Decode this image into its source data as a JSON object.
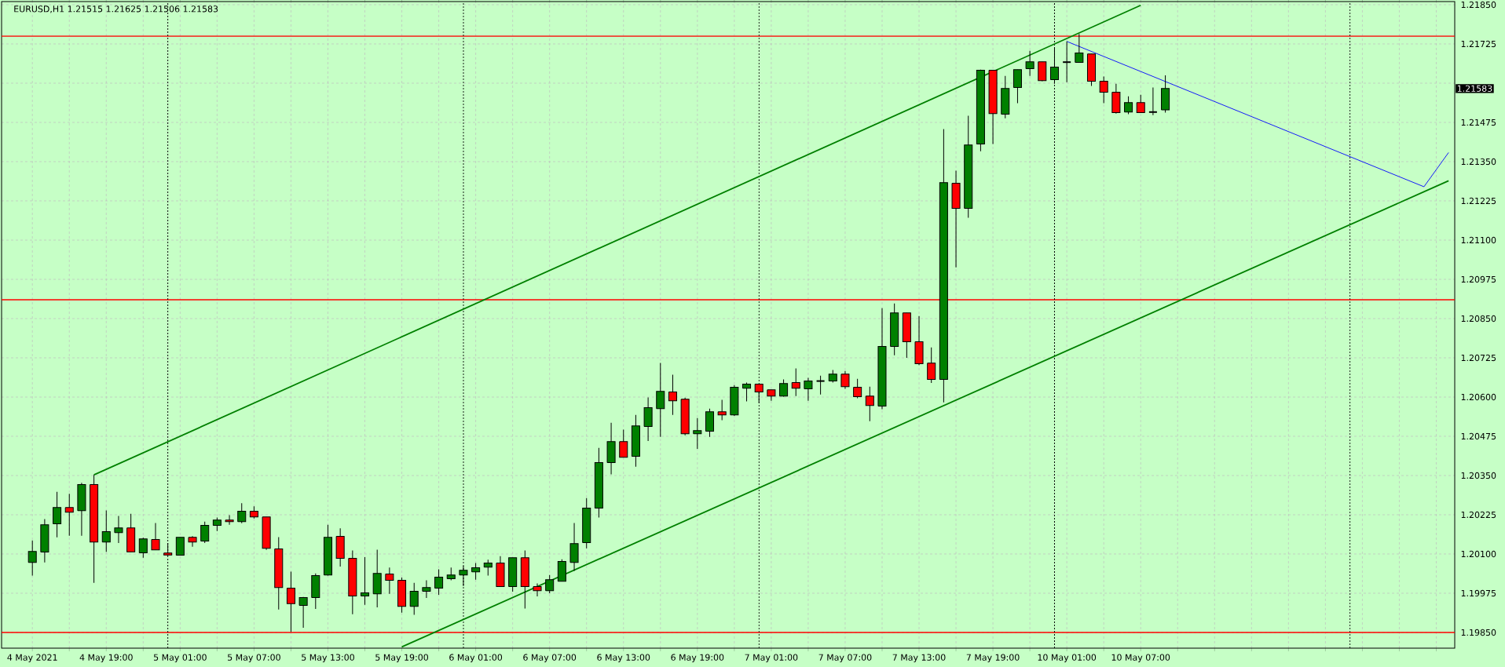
{
  "chart_data": {
    "type": "candlestick",
    "title": "EURUSD,H1  1.21515 1.21625 1.21506 1.21583",
    "categories": [
      "4 May 2021",
      null,
      null,
      null,
      null,
      null,
      "4 May 19:00",
      null,
      null,
      null,
      null,
      null,
      "5 May 01:00",
      null,
      null,
      null,
      null,
      null,
      "5 May 07:00",
      null,
      null,
      null,
      null,
      null,
      "5 May 13:00",
      null,
      null,
      null,
      null,
      null,
      "5 May 19:00",
      null,
      null,
      null,
      null,
      null,
      "6 May 01:00",
      null,
      null,
      null,
      null,
      null,
      "6 May 07:00",
      null,
      null,
      null,
      null,
      null,
      "6 May 13:00",
      null,
      null,
      null,
      null,
      null,
      "6 May 19:00",
      null,
      null,
      null,
      null,
      null,
      "7 May 01:00",
      null,
      null,
      null,
      null,
      null,
      "7 May 07:00",
      null,
      null,
      null,
      null,
      null,
      "7 May 13:00",
      null,
      null,
      null,
      null,
      null,
      "7 May 19:00",
      null,
      null,
      null,
      null,
      null,
      "10 May 01:00",
      null,
      null,
      null,
      null,
      null,
      "10 May 07:00",
      null,
      null,
      null,
      null,
      null,
      null,
      null,
      null,
      null,
      null,
      null,
      null,
      null,
      null,
      null,
      null,
      null,
      null,
      null,
      null,
      null,
      null,
      null,
      null,
      null
    ],
    "ohlc": [
      [
        1.20073,
        1.20143,
        1.20031,
        1.20108
      ],
      [
        1.20106,
        1.20211,
        1.20073,
        1.20193
      ],
      [
        1.20196,
        1.20298,
        1.20153,
        1.20248
      ],
      [
        1.20248,
        1.20292,
        1.20158,
        1.20233
      ],
      [
        1.20238,
        1.20327,
        1.20158,
        1.20321
      ],
      [
        1.20321,
        1.20352,
        1.20008,
        1.20138
      ],
      [
        1.20138,
        1.20239,
        1.20107,
        1.20171
      ],
      [
        1.20168,
        1.20221,
        1.20135,
        1.20183
      ],
      [
        1.20183,
        1.20228,
        1.20107,
        1.20107
      ],
      [
        1.20104,
        1.20152,
        1.20088,
        1.20148
      ],
      [
        1.20146,
        1.20199,
        1.20113,
        1.20113
      ],
      [
        1.20103,
        1.20135,
        1.20095,
        1.20097
      ],
      [
        1.20096,
        1.20153,
        1.20096,
        1.20153
      ],
      [
        1.20153,
        1.20157,
        1.20123,
        1.20138
      ],
      [
        1.20141,
        1.20203,
        1.20135,
        1.20191
      ],
      [
        1.20191,
        1.20216,
        1.20173,
        1.20208
      ],
      [
        1.20208,
        1.20224,
        1.20193,
        1.20203
      ],
      [
        1.20203,
        1.20262,
        1.20198,
        1.20236
      ],
      [
        1.20236,
        1.20252,
        1.20213,
        1.20218
      ],
      [
        1.20218,
        1.20218,
        1.20113,
        1.20118
      ],
      [
        1.20116,
        1.20154,
        1.19923,
        1.19993
      ],
      [
        1.19991,
        1.20044,
        1.19852,
        1.19942
      ],
      [
        1.19936,
        1.19963,
        1.19865,
        1.19961
      ],
      [
        1.19961,
        1.20038,
        1.19925,
        1.20031
      ],
      [
        1.20033,
        1.20193,
        1.20031,
        1.20153
      ],
      [
        1.20156,
        1.20182,
        1.2006,
        1.20086
      ],
      [
        1.20086,
        1.20111,
        1.19908,
        1.19966
      ],
      [
        1.19966,
        1.2009,
        1.19938,
        1.19976
      ],
      [
        1.19973,
        1.20114,
        1.1993,
        1.20038
      ],
      [
        1.20036,
        1.20057,
        1.19973,
        1.20016
      ],
      [
        1.20016,
        1.20025,
        1.19913,
        1.19933
      ],
      [
        1.19933,
        1.20008,
        1.19906,
        1.19981
      ],
      [
        1.19981,
        1.20016,
        1.1996,
        1.19993
      ],
      [
        1.19991,
        1.20051,
        1.1997,
        1.20026
      ],
      [
        1.20021,
        1.20057,
        1.20016,
        1.20033
      ],
      [
        1.20033,
        1.20062,
        1.19998,
        1.20048
      ],
      [
        1.20043,
        1.20071,
        1.20018,
        1.20056
      ],
      [
        1.20058,
        1.20082,
        1.20031,
        1.20071
      ],
      [
        1.20071,
        1.20093,
        1.19996,
        1.19996
      ],
      [
        1.19996,
        1.20088,
        1.1998,
        1.20088
      ],
      [
        1.20088,
        1.20111,
        1.19926,
        1.19996
      ],
      [
        1.19996,
        1.20006,
        1.19965,
        1.19983
      ],
      [
        1.19983,
        1.20033,
        1.19975,
        1.20018
      ],
      [
        1.20013,
        1.20083,
        1.20013,
        1.20076
      ],
      [
        1.20073,
        1.20199,
        1.20046,
        1.20133
      ],
      [
        1.20136,
        1.20278,
        1.20118,
        1.20246
      ],
      [
        1.20246,
        1.20438,
        1.20216,
        1.20391
      ],
      [
        1.20391,
        1.20518,
        1.20354,
        1.20458
      ],
      [
        1.20458,
        1.20496,
        1.20408,
        1.20408
      ],
      [
        1.20411,
        1.20543,
        1.20378,
        1.20508
      ],
      [
        1.20506,
        1.20599,
        1.2046,
        1.20566
      ],
      [
        1.20563,
        1.20709,
        1.20473,
        1.20618
      ],
      [
        1.20616,
        1.20671,
        1.20543,
        1.20588
      ],
      [
        1.20593,
        1.20598,
        1.20478,
        1.20483
      ],
      [
        1.20483,
        1.20533,
        1.20435,
        1.20493
      ],
      [
        1.20491,
        1.20563,
        1.20473,
        1.20553
      ],
      [
        1.20553,
        1.20591,
        1.20526,
        1.20543
      ],
      [
        1.20543,
        1.20638,
        1.2054,
        1.20631
      ],
      [
        1.20628,
        1.20646,
        1.20586,
        1.20641
      ],
      [
        1.20641,
        1.20641,
        1.20581,
        1.20616
      ],
      [
        1.20623,
        1.20623,
        1.20588,
        1.20603
      ],
      [
        1.20603,
        1.20656,
        1.20601,
        1.20643
      ],
      [
        1.20646,
        1.20691,
        1.20603,
        1.20628
      ],
      [
        1.20626,
        1.20661,
        1.20588,
        1.20651
      ],
      [
        1.20651,
        1.20668,
        1.20608,
        1.20651
      ],
      [
        1.20651,
        1.20686,
        1.20646,
        1.20673
      ],
      [
        1.20673,
        1.20683,
        1.20626,
        1.20633
      ],
      [
        1.20631,
        1.20658,
        1.20596,
        1.20601
      ],
      [
        1.20603,
        1.20633,
        1.20523,
        1.20573
      ],
      [
        1.20571,
        1.20883,
        1.20561,
        1.20761
      ],
      [
        1.20761,
        1.20898,
        1.20733,
        1.20868
      ],
      [
        1.20868,
        1.20868,
        1.20725,
        1.20776
      ],
      [
        1.20776,
        1.20858,
        1.20702,
        1.20706
      ],
      [
        1.20708,
        1.20758,
        1.20645,
        1.20656
      ],
      [
        1.20656,
        1.21454,
        1.20583,
        1.21283
      ],
      [
        1.21281,
        1.21321,
        1.21013,
        1.21201
      ],
      [
        1.21201,
        1.21496,
        1.21171,
        1.21403
      ],
      [
        1.21406,
        1.21643,
        1.21383,
        1.21641
      ],
      [
        1.21641,
        1.21641,
        1.21406,
        1.21503
      ],
      [
        1.21501,
        1.21623,
        1.21488,
        1.21583
      ],
      [
        1.21586,
        1.21643,
        1.21536,
        1.21643
      ],
      [
        1.21646,
        1.21703,
        1.21623,
        1.21668
      ],
      [
        1.21668,
        1.21668,
        1.21606,
        1.21608
      ],
      [
        1.21611,
        1.21711,
        1.21598,
        1.21651
      ],
      [
        1.21667,
        1.21733,
        1.21603,
        1.21667
      ],
      [
        1.21666,
        1.21757,
        1.21666,
        1.21696
      ],
      [
        1.21693,
        1.21693,
        1.21591,
        1.21606
      ],
      [
        1.21606,
        1.21621,
        1.21536,
        1.21571
      ],
      [
        1.21571,
        1.21598,
        1.21503,
        1.21506
      ],
      [
        1.21508,
        1.21558,
        1.21501,
        1.21538
      ],
      [
        1.21538,
        1.21563,
        1.21506,
        1.21506
      ],
      [
        1.21508,
        1.21586,
        1.21498,
        1.21508
      ],
      [
        1.21515,
        1.21625,
        1.21506,
        1.21583
      ],
      null,
      null,
      null,
      null,
      null,
      null,
      null,
      null,
      null,
      null,
      null,
      null,
      null,
      null,
      null,
      null,
      null,
      null,
      null,
      null,
      null,
      null,
      null
    ],
    "colors": [
      "#008000",
      "#008000",
      "#008000",
      "#ff0000",
      "#008000",
      "#ff0000",
      "#008000",
      "#008000",
      "#ff0000",
      "#008000",
      "#ff0000",
      "#ff0000",
      "#008000",
      "#ff0000",
      "#008000",
      "#008000",
      "#ff0000",
      "#008000",
      "#ff0000",
      "#ff0000",
      "#ff0000",
      "#ff0000",
      "#008000",
      "#008000",
      "#008000",
      "#ff0000",
      "#ff0000",
      "#008000",
      "#008000",
      "#ff0000",
      "#ff0000",
      "#008000",
      "#008000",
      "#008000",
      "#008000",
      "#008000",
      "#008000",
      "#008000",
      "#ff0000",
      "#008000",
      "#ff0000",
      "#ff0000",
      "#008000",
      "#008000",
      "#008000",
      "#008000",
      "#008000",
      "#008000",
      "#ff0000",
      "#008000",
      "#008000",
      "#008000",
      "#ff0000",
      "#ff0000",
      "#008000",
      "#008000",
      "#ff0000",
      "#008000",
      "#008000",
      "#ff0000",
      "#ff0000",
      "#008000",
      "#ff0000",
      "#008000",
      "#000000",
      "#008000",
      "#ff0000",
      "#ff0000",
      "#ff0000",
      "#008000",
      "#008000",
      "#ff0000",
      "#ff0000",
      "#ff0000",
      "#008000",
      "#ff0000",
      "#008000",
      "#008000",
      "#ff0000",
      "#008000",
      "#008000",
      "#008000",
      "#ff0000",
      "#008000",
      "#000000",
      "#008000",
      "#ff0000",
      "#ff0000",
      "#ff0000",
      "#008000",
      "#ff0000",
      "#000000",
      "#008000",
      null,
      null,
      null,
      null,
      null,
      null,
      null,
      null,
      null,
      null,
      null,
      null,
      null,
      null,
      null,
      null,
      null,
      null,
      null,
      null,
      null,
      null,
      null
    ],
    "series": [
      {
        "type": "line",
        "color": "#008000",
        "values": [
          null,
          null,
          null,
          null,
          null,
          1.20352,
          null,
          null,
          null,
          null,
          null,
          null,
          null,
          null,
          null,
          null,
          null,
          null,
          null,
          null,
          null,
          null,
          null,
          null,
          null,
          null,
          null,
          null,
          null,
          null,
          null,
          null,
          null,
          null,
          null,
          null,
          null,
          null,
          null,
          null,
          null,
          null,
          null,
          null,
          null,
          null,
          null,
          null,
          null,
          null,
          null,
          null,
          null,
          null,
          null,
          null,
          null,
          null,
          null,
          null,
          null,
          null,
          null,
          null,
          null,
          null,
          null,
          null,
          null,
          null,
          null,
          null,
          null,
          null,
          null,
          null,
          null,
          null,
          null,
          null,
          null,
          null,
          null,
          null,
          null,
          null,
          null,
          null,
          null,
          null,
          1.21848,
          null,
          null,
          null,
          null,
          null,
          null,
          null,
          null,
          null,
          null,
          null,
          null,
          null,
          null,
          null,
          null,
          null,
          null,
          null,
          null,
          null,
          null,
          null,
          null,
          null
        ]
      },
      {
        "type": "line",
        "color": "#008000",
        "values": [
          null,
          null,
          null,
          null,
          null,
          null,
          null,
          null,
          null,
          null,
          null,
          null,
          null,
          null,
          null,
          null,
          null,
          null,
          null,
          null,
          null,
          null,
          null,
          null,
          null,
          null,
          null,
          null,
          null,
          null,
          1.19804,
          null,
          null,
          null,
          null,
          null,
          null,
          null,
          null,
          null,
          null,
          null,
          null,
          null,
          null,
          null,
          null,
          null,
          null,
          null,
          null,
          null,
          null,
          null,
          null,
          null,
          null,
          null,
          null,
          null,
          null,
          null,
          null,
          null,
          null,
          null,
          null,
          null,
          null,
          null,
          null,
          null,
          null,
          null,
          null,
          null,
          null,
          null,
          null,
          null,
          null,
          null,
          null,
          null,
          null,
          null,
          null,
          null,
          null,
          null,
          null,
          null,
          null,
          null,
          null,
          null,
          null,
          null,
          null,
          null,
          null,
          null,
          null,
          null,
          null,
          null,
          null,
          null,
          null,
          null,
          null,
          null,
          null,
          null,
          null,
          1.21289
        ]
      },
      {
        "type": "line",
        "color": "#0000ff",
        "values": [
          null,
          null,
          null,
          null,
          null,
          null,
          null,
          null,
          null,
          null,
          null,
          null,
          null,
          null,
          null,
          null,
          null,
          null,
          null,
          null,
          null,
          null,
          null,
          null,
          null,
          null,
          null,
          null,
          null,
          null,
          null,
          null,
          null,
          null,
          null,
          null,
          null,
          null,
          null,
          null,
          null,
          null,
          null,
          null,
          null,
          null,
          null,
          null,
          null,
          null,
          null,
          null,
          null,
          null,
          null,
          null,
          null,
          null,
          null,
          null,
          null,
          null,
          null,
          null,
          null,
          null,
          null,
          null,
          null,
          null,
          null,
          null,
          null,
          null,
          null,
          null,
          null,
          null,
          null,
          null,
          null,
          null,
          null,
          null,
          1.21733,
          null,
          null,
          null,
          null,
          null,
          null,
          null,
          null,
          null,
          null,
          null,
          null,
          null,
          null,
          null,
          null,
          null,
          null,
          null,
          null,
          null,
          null,
          null,
          null,
          null,
          null,
          null,
          null,
          1.2127,
          null,
          1.21379
        ]
      }
    ],
    "ylim": [
      1.198,
      1.2186
    ],
    "yticks": [
      {
        "value": 1.2185,
        "label": "1.21850"
      },
      {
        "value": 1.21725,
        "label": "1.21725"
      },
      {
        "value": 1.216,
        "label": null
      },
      {
        "value": 1.21475,
        "label": "1.21475"
      },
      {
        "value": 1.2135,
        "label": "1.21350"
      },
      {
        "value": 1.21225,
        "label": "1.21225"
      },
      {
        "value": 1.211,
        "label": "1.21100"
      },
      {
        "value": 1.20975,
        "label": "1.20975"
      },
      {
        "value": 1.2085,
        "label": "1.20850"
      },
      {
        "value": 1.20725,
        "label": "1.20725"
      },
      {
        "value": 1.206,
        "label": "1.20600"
      },
      {
        "value": 1.20475,
        "label": "1.20475"
      },
      {
        "value": 1.2035,
        "label": "1.20350"
      },
      {
        "value": 1.20225,
        "label": "1.20225"
      },
      {
        "value": 1.201,
        "label": "1.20100"
      },
      {
        "value": 1.19975,
        "label": "1.19975"
      },
      {
        "value": 1.1985,
        "label": "1.19850"
      }
    ],
    "ref_lines": [
      {
        "axis": "y",
        "value": 1.2175,
        "color": "#ff0000",
        "line_style": "solid"
      },
      {
        "axis": "y",
        "value": 1.2091,
        "color": "#ff0000",
        "line_style": "solid"
      },
      {
        "axis": "y",
        "value": 1.1985,
        "color": "#ff0000",
        "line_style": "solid"
      }
    ],
    "annotations": [
      "1.21583"
    ],
    "grid": true
  }
}
